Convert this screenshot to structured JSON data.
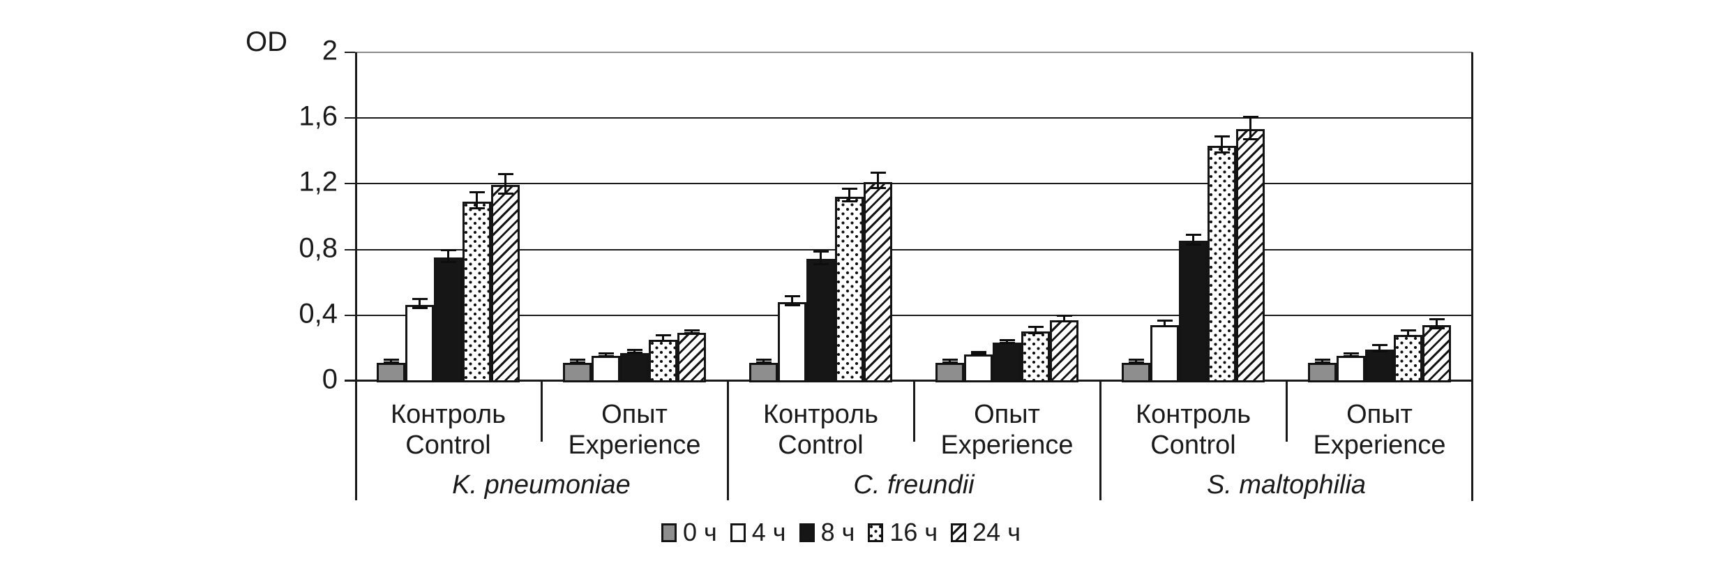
{
  "figure_background": "#ffffff",
  "chart_data": {
    "type": "bar",
    "ylabel": "OD",
    "ylim": [
      0,
      2
    ],
    "ytick_labels": [
      "0",
      "0,4",
      "0,8",
      "1,2",
      "1,6",
      "2"
    ],
    "ytick_values": [
      0,
      0.4,
      0.8,
      1.2,
      1.6,
      2
    ],
    "grid": true,
    "legend_position": "bottom-center",
    "series": [
      {
        "label": "0 ч",
        "pattern": "solid-gray"
      },
      {
        "label": "4 ч",
        "pattern": "solid-white"
      },
      {
        "label": "8 ч",
        "pattern": "solid-black"
      },
      {
        "label": "16 ч",
        "pattern": "dots"
      },
      {
        "label": "24 ч",
        "pattern": "diagonal-hatch"
      }
    ],
    "species": [
      {
        "name": "K. pneumoniae",
        "groups": [
          {
            "label_ru": "Контроль",
            "label_en": "Control",
            "values": [
              0.12,
              0.47,
              0.76,
              1.1,
              1.2
            ],
            "errors": [
              0.01,
              0.03,
              0.04,
              0.05,
              0.06
            ]
          },
          {
            "label_ru": "Опыт",
            "label_en": "Experience",
            "values": [
              0.12,
              0.16,
              0.18,
              0.26,
              0.3
            ],
            "errors": [
              0.01,
              0.01,
              0.01,
              0.02,
              0.01
            ]
          }
        ]
      },
      {
        "name": "C. freundii",
        "groups": [
          {
            "label_ru": "Контроль",
            "label_en": "Control",
            "values": [
              0.12,
              0.49,
              0.75,
              1.13,
              1.22
            ],
            "errors": [
              0.01,
              0.03,
              0.04,
              0.04,
              0.05
            ]
          },
          {
            "label_ru": "Опыт",
            "label_en": "Experience",
            "values": [
              0.12,
              0.17,
              0.24,
              0.31,
              0.38
            ],
            "errors": [
              0.01,
              0.01,
              0.01,
              0.02,
              0.02
            ]
          }
        ]
      },
      {
        "name": "S. maltophilia",
        "groups": [
          {
            "label_ru": "Контроль",
            "label_en": "Control",
            "values": [
              0.12,
              0.35,
              0.86,
              1.44,
              1.54
            ],
            "errors": [
              0.01,
              0.02,
              0.03,
              0.05,
              0.07
            ]
          },
          {
            "label_ru": "Опыт",
            "label_en": "Experience",
            "values": [
              0.12,
              0.16,
              0.2,
              0.29,
              0.35
            ],
            "errors": [
              0.01,
              0.01,
              0.02,
              0.02,
              0.03
            ]
          }
        ]
      }
    ]
  },
  "colors": {
    "bar_gray": "#8e8e8e",
    "bar_white": "#ffffff",
    "bar_black": "#161616",
    "axis": "#1a1a1a",
    "top_gridline": "#8a8a8a",
    "text": "#1a1a1a"
  }
}
